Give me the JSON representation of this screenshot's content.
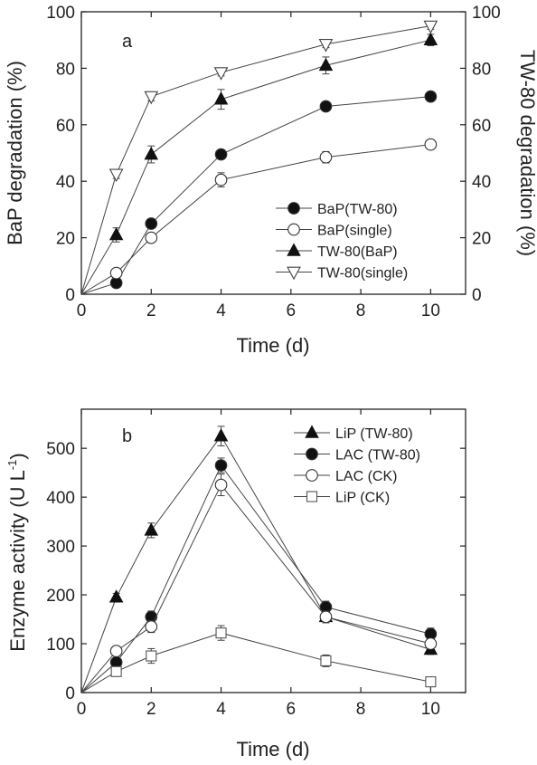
{
  "chart_data": [
    {
      "type": "line",
      "panel_label": "a",
      "xlabel": "Time (d)",
      "ylabel": "BaP degradation (%)",
      "ylabel_right": "TW-80 degradation (%)",
      "xlim": [
        0,
        11
      ],
      "ylim": [
        0,
        100
      ],
      "xticks": [
        "0",
        "2",
        "4",
        "6",
        "8",
        "10"
      ],
      "yticks": [
        "0",
        "20",
        "40",
        "60",
        "80",
        "100"
      ],
      "legend_position": "lower-right",
      "series": [
        {
          "name": "BaP(TW-80)",
          "marker": "circle-filled",
          "x": [
            0,
            1,
            2,
            4,
            7,
            10
          ],
          "y": [
            0,
            4,
            25,
            49.5,
            66.5,
            70
          ],
          "err": [
            0,
            0.8,
            1.5,
            1.5,
            1.2,
            1.2
          ]
        },
        {
          "name": "BaP(single)",
          "marker": "circle-open",
          "x": [
            0,
            1,
            2,
            4,
            7,
            10
          ],
          "y": [
            0,
            7.5,
            20,
            40.5,
            48.5,
            53
          ],
          "err": [
            0,
            1,
            1.5,
            2.5,
            2,
            1
          ]
        },
        {
          "name": "TW-80(BaP)",
          "marker": "triangle-up-filled",
          "x": [
            0,
            1,
            2,
            4,
            7,
            10
          ],
          "y": [
            0,
            21,
            49.5,
            69,
            81,
            90
          ],
          "err": [
            0,
            2.5,
            3,
            3.5,
            3,
            2
          ]
        },
        {
          "name": "TW-80(single)",
          "marker": "triangle-down-open",
          "x": [
            0,
            1,
            2,
            4,
            7,
            10
          ],
          "y": [
            0,
            42.5,
            70,
            78.5,
            88.5,
            95
          ],
          "err": [
            0,
            1.5,
            1.5,
            1.2,
            1.2,
            1.2
          ]
        }
      ]
    },
    {
      "type": "line",
      "panel_label": "b",
      "xlabel": "Time (d)",
      "ylabel": "Enzyme activity (U L",
      "ylabel_sup": "-1",
      "ylabel_close": ")",
      "xlim": [
        0,
        11
      ],
      "ylim": [
        0,
        580
      ],
      "xticks": [
        "0",
        "2",
        "4",
        "6",
        "8",
        "10"
      ],
      "yticks": [
        "0",
        "100",
        "200",
        "300",
        "400",
        "500"
      ],
      "legend_position": "top-right",
      "series": [
        {
          "name": "LiP (TW-80)",
          "marker": "triangle-up-filled",
          "x": [
            0,
            1,
            2,
            4,
            7,
            10
          ],
          "y": [
            0,
            195,
            332,
            525,
            155,
            88
          ],
          "err": [
            0,
            8,
            15,
            20,
            12,
            10
          ]
        },
        {
          "name": "LAC (TW-80)",
          "marker": "circle-filled",
          "x": [
            0,
            1,
            2,
            4,
            7,
            10
          ],
          "y": [
            0,
            62,
            155,
            465,
            175,
            120
          ],
          "err": [
            0,
            8,
            12,
            15,
            12,
            12
          ]
        },
        {
          "name": "LAC (CK)",
          "marker": "circle-open",
          "x": [
            0,
            1,
            2,
            4,
            7,
            10
          ],
          "y": [
            0,
            85,
            135,
            425,
            155,
            100
          ],
          "err": [
            0,
            6,
            12,
            22,
            12,
            10
          ]
        },
        {
          "name": "LiP (CK)",
          "marker": "square-open",
          "x": [
            0,
            1,
            2,
            4,
            7,
            10
          ],
          "y": [
            0,
            43,
            75,
            122,
            65,
            22
          ],
          "err": [
            0,
            8,
            15,
            15,
            12,
            5
          ]
        }
      ]
    }
  ]
}
